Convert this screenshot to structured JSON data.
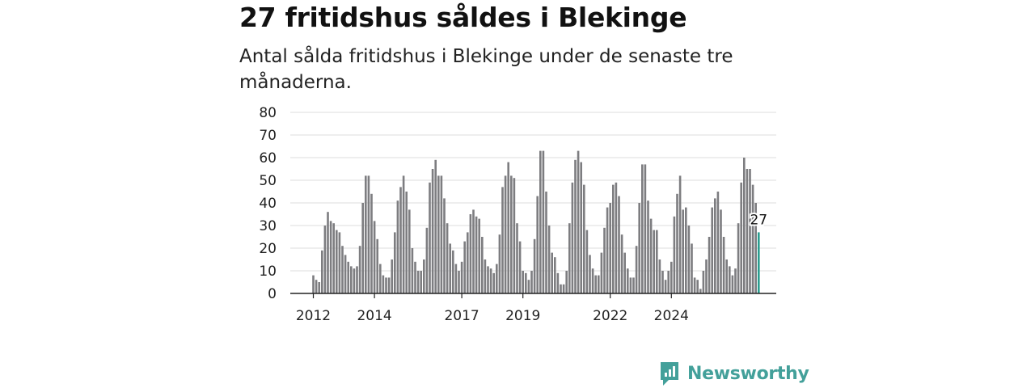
{
  "header": {
    "title": "27 fritidshus såldes i Blekinge",
    "subtitle": "Antal sålda fritidshus i Blekinge under de senaste tre månaderna."
  },
  "brand": {
    "name": "Newsworthy"
  },
  "colors": {
    "bar": "#7d7d80",
    "highlight": "#2a9d8f",
    "brand": "#43a09a"
  },
  "chart_data": {
    "type": "bar",
    "title": "27 fritidshus såldes i Blekinge",
    "subtitle": "Antal sålda fritidshus i Blekinge under de senaste tre månaderna.",
    "xlabel": "",
    "ylabel": "",
    "ylim": [
      0,
      80
    ],
    "yticks": [
      0,
      10,
      20,
      30,
      40,
      50,
      60,
      70,
      80
    ],
    "grid": true,
    "legend": "none",
    "xticks": [
      {
        "label": "2012",
        "index": 0
      },
      {
        "label": "2014",
        "index": 21
      },
      {
        "label": "2017",
        "index": 51
      },
      {
        "label": "2019",
        "index": 72
      },
      {
        "label": "2022",
        "index": 102
      },
      {
        "label": "2024",
        "index": 123
      }
    ],
    "highlight_label": "27",
    "values": [
      8,
      6,
      5,
      19,
      30,
      36,
      32,
      31,
      28,
      27,
      21,
      17,
      14,
      12,
      11,
      12,
      21,
      40,
      52,
      52,
      44,
      32,
      24,
      13,
      8,
      7,
      7,
      15,
      27,
      41,
      47,
      52,
      45,
      37,
      20,
      14,
      10,
      10,
      15,
      29,
      49,
      55,
      59,
      52,
      52,
      42,
      31,
      22,
      19,
      13,
      10,
      14,
      23,
      27,
      35,
      37,
      34,
      33,
      25,
      15,
      12,
      11,
      9,
      13,
      26,
      47,
      52,
      58,
      52,
      51,
      31,
      23,
      10,
      9,
      6,
      10,
      24,
      43,
      63,
      63,
      45,
      30,
      18,
      16,
      9,
      4,
      4,
      10,
      31,
      49,
      59,
      63,
      58,
      48,
      28,
      17,
      11,
      8,
      8,
      18,
      29,
      38,
      40,
      48,
      49,
      43,
      26,
      18,
      11,
      7,
      7,
      21,
      40,
      57,
      57,
      41,
      33,
      28,
      28,
      15,
      10,
      6,
      10,
      14,
      34,
      44,
      52,
      37,
      38,
      30,
      22,
      7,
      6,
      2,
      10,
      15,
      25,
      38,
      42,
      45,
      37,
      25,
      15,
      12,
      8,
      11,
      31,
      49,
      60,
      55,
      55,
      48,
      40,
      27
    ]
  }
}
